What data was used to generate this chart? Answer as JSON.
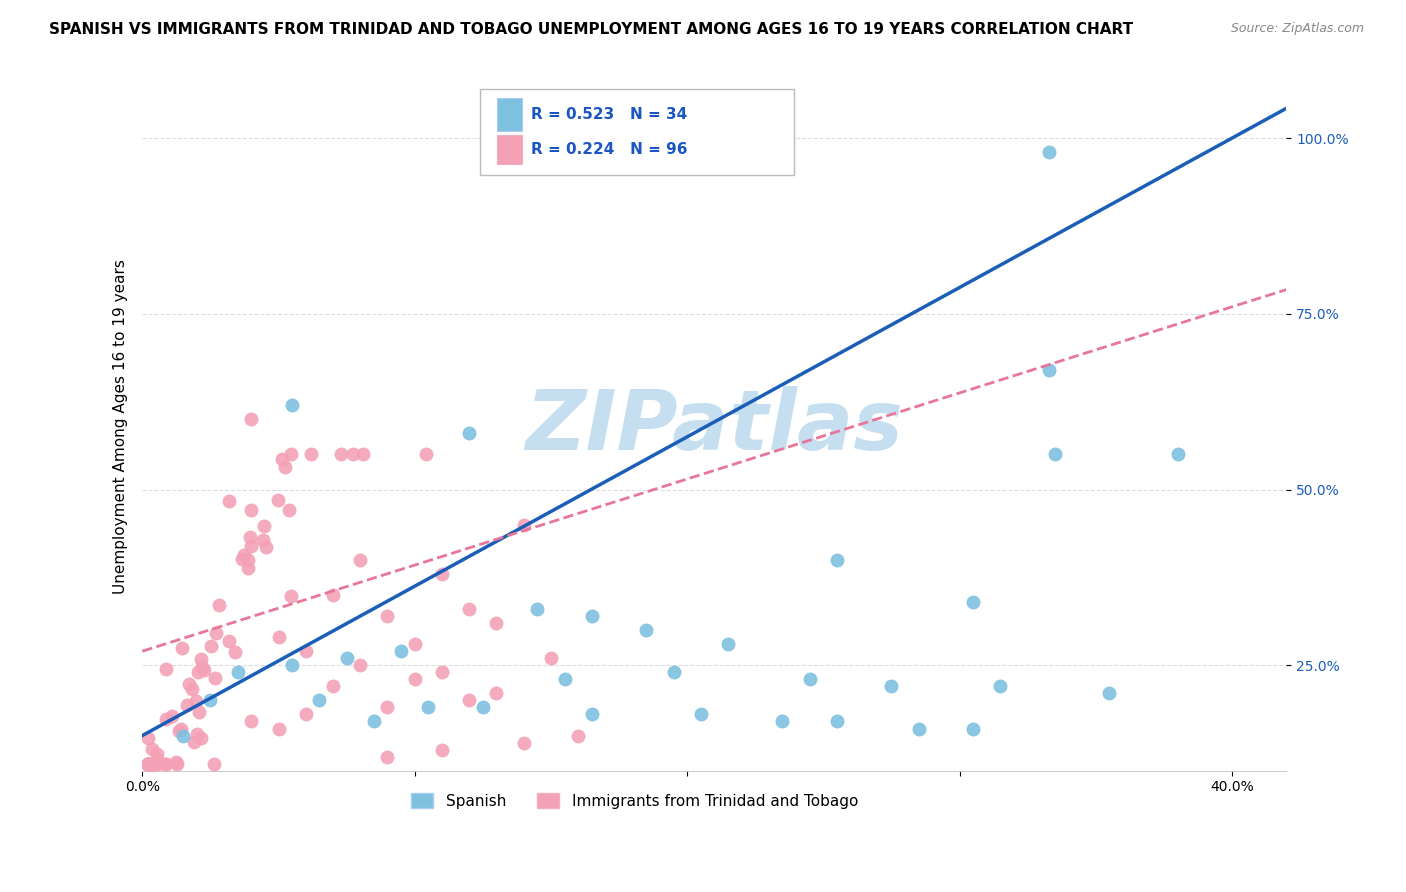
{
  "title": "SPANISH VS IMMIGRANTS FROM TRINIDAD AND TOBAGO UNEMPLOYMENT AMONG AGES 16 TO 19 YEARS CORRELATION CHART",
  "source": "Source: ZipAtlas.com",
  "ylabel": "Unemployment Among Ages 16 to 19 years",
  "xlim": [
    0.0,
    0.42
  ],
  "ylim": [
    0.1,
    1.08
  ],
  "xticks": [
    0.0,
    0.1,
    0.2,
    0.3,
    0.4
  ],
  "xtick_labels": [
    "0.0%",
    "",
    "",
    "",
    "40.0%"
  ],
  "yticks": [
    0.25,
    0.5,
    0.75,
    1.0
  ],
  "ytick_labels": [
    "25.0%",
    "50.0%",
    "75.0%",
    "100.0%"
  ],
  "blue_R": 0.523,
  "blue_N": 34,
  "pink_R": 0.224,
  "pink_N": 96,
  "blue_color": "#7ec0e0",
  "pink_color": "#f4a0b5",
  "blue_line_color": "#1a5eb8",
  "pink_line_color": "#e8769a",
  "legend_label_blue": "Spanish",
  "legend_label_pink": "Immigrants from Trinidad and Tobago",
  "watermark": "ZIPatlas",
  "watermark_color": "#c5dff0",
  "title_fontsize": 11,
  "axis_label_fontsize": 11,
  "tick_fontsize": 10,
  "ytick_color": "#1a5eb8",
  "legend_R_N_color": "#1a56c4",
  "blue_line_y0": 0.15,
  "blue_line_y1": 1.0,
  "pink_line_y0": 0.27,
  "pink_line_y1": 0.76
}
